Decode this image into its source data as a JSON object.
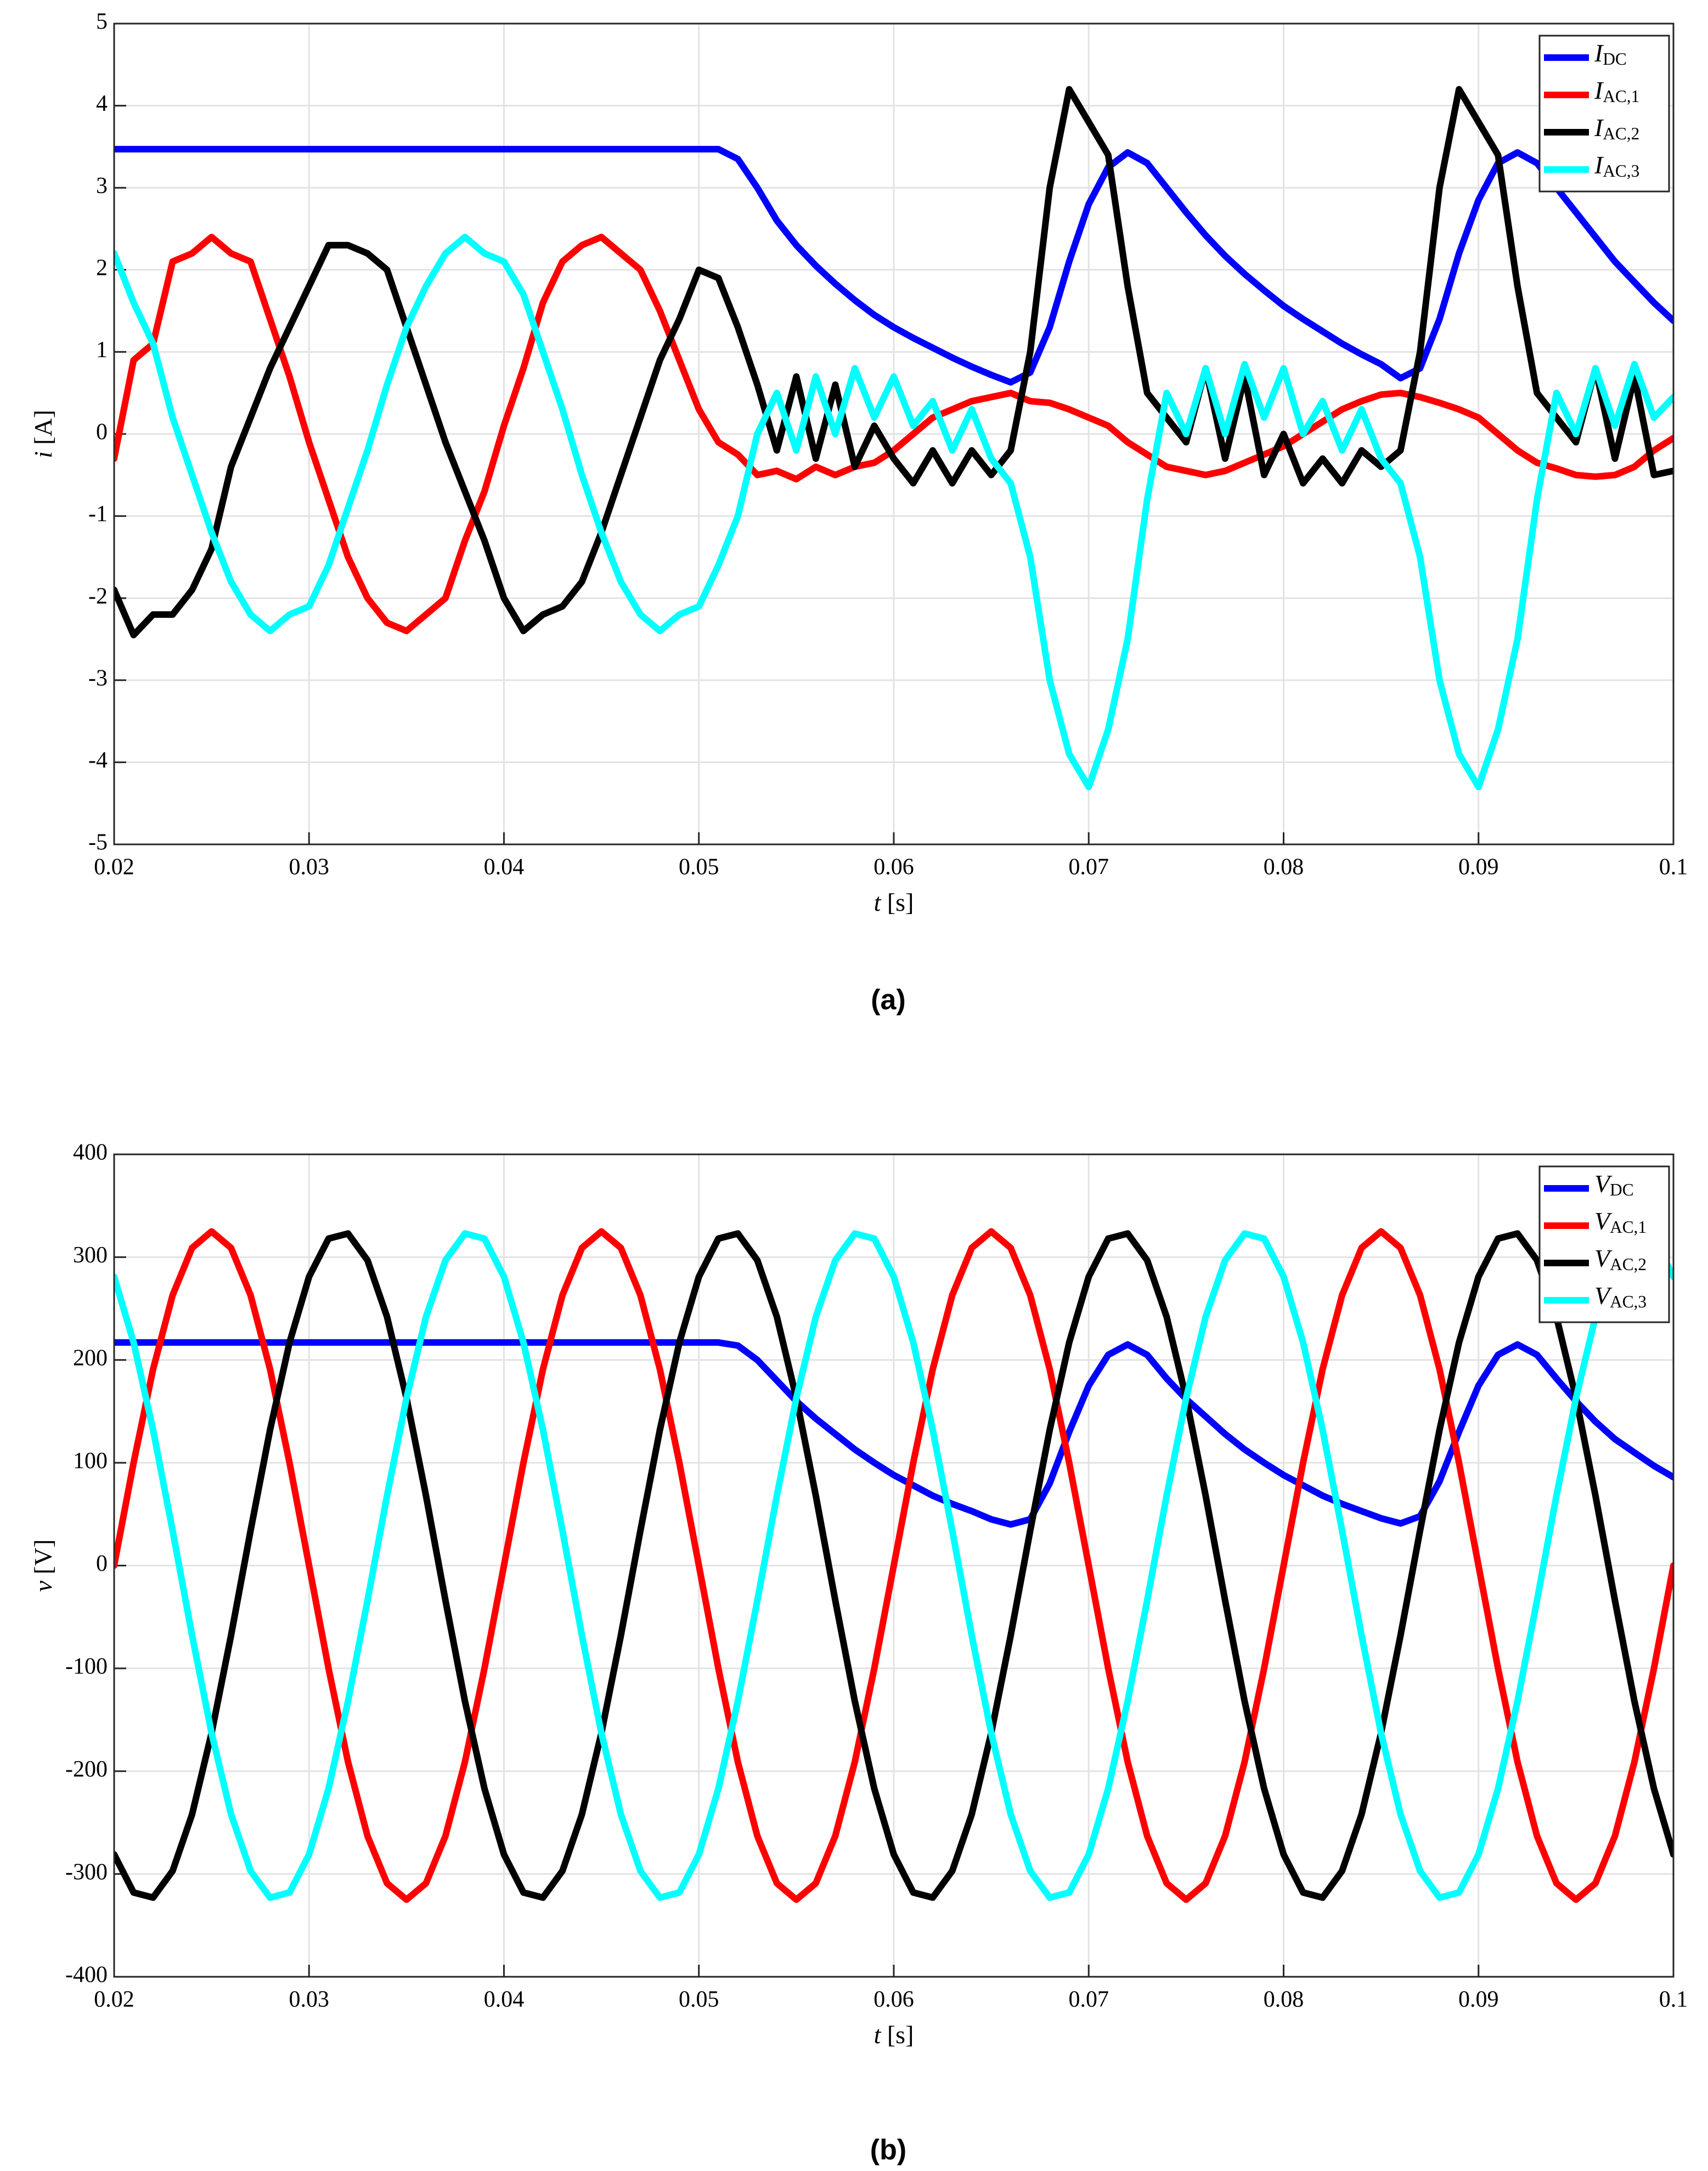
{
  "chart_data": [
    {
      "type": "line",
      "label": "(a)",
      "xlabel": "t  [s]",
      "ylabel": "i  [A]",
      "grid": true,
      "legend": "upper right",
      "xlim": [
        0.02,
        0.1
      ],
      "xticks": [
        0.02,
        0.03,
        0.04,
        0.05,
        0.06,
        0.07,
        0.08,
        0.09,
        0.1
      ],
      "ylim": [
        -5,
        5
      ],
      "yticks": [
        -5,
        -4,
        -3,
        -2,
        -1,
        0,
        1,
        2,
        3,
        4,
        5
      ],
      "x": [
        0.02,
        0.021,
        0.022,
        0.023,
        0.024,
        0.025,
        0.026,
        0.027,
        0.028,
        0.029,
        0.03,
        0.031,
        0.032,
        0.033,
        0.034,
        0.035,
        0.036,
        0.037,
        0.038,
        0.039,
        0.04,
        0.041,
        0.042,
        0.043,
        0.044,
        0.045,
        0.046,
        0.047,
        0.048,
        0.049,
        0.05,
        0.051,
        0.052,
        0.053,
        0.054,
        0.055,
        0.056,
        0.057,
        0.058,
        0.059,
        0.06,
        0.061,
        0.062,
        0.063,
        0.064,
        0.065,
        0.066,
        0.067,
        0.068,
        0.069,
        0.07,
        0.071,
        0.072,
        0.073,
        0.074,
        0.075,
        0.076,
        0.077,
        0.078,
        0.079,
        0.08,
        0.081,
        0.082,
        0.083,
        0.084,
        0.085,
        0.086,
        0.087,
        0.088,
        0.089,
        0.09,
        0.091,
        0.092,
        0.093,
        0.094,
        0.095,
        0.096,
        0.097,
        0.098,
        0.099,
        0.1
      ],
      "series": [
        {
          "name": "IDC",
          "color": "#0000ff",
          "values": [
            3.47,
            3.47,
            3.47,
            3.47,
            3.47,
            3.47,
            3.47,
            3.47,
            3.47,
            3.47,
            3.47,
            3.47,
            3.47,
            3.47,
            3.47,
            3.47,
            3.47,
            3.47,
            3.47,
            3.47,
            3.47,
            3.47,
            3.47,
            3.47,
            3.47,
            3.47,
            3.47,
            3.47,
            3.47,
            3.47,
            3.47,
            3.47,
            3.35,
            3.0,
            2.6,
            2.3,
            2.05,
            1.83,
            1.63,
            1.45,
            1.3,
            1.17,
            1.05,
            0.93,
            0.82,
            0.72,
            0.63,
            0.75,
            1.3,
            2.1,
            2.8,
            3.25,
            3.43,
            3.3,
            3.0,
            2.7,
            2.42,
            2.17,
            1.95,
            1.75,
            1.56,
            1.4,
            1.25,
            1.1,
            0.97,
            0.85,
            0.68,
            0.8,
            1.4,
            2.2,
            2.85,
            3.3,
            3.43,
            3.3,
            3.0,
            2.7,
            2.4,
            2.1,
            1.85,
            1.6,
            1.38
          ]
        },
        {
          "name": "IAC,1",
          "color": "#ff0000",
          "values": [
            -0.3,
            0.9,
            1.1,
            2.1,
            2.2,
            2.4,
            2.2,
            2.1,
            1.4,
            0.7,
            -0.1,
            -0.8,
            -1.5,
            -2.0,
            -2.3,
            -2.4,
            -2.2,
            -2.0,
            -1.3,
            -0.7,
            0.1,
            0.8,
            1.6,
            2.1,
            2.3,
            2.4,
            2.2,
            2.0,
            1.5,
            0.9,
            0.3,
            -0.1,
            -0.25,
            -0.5,
            -0.45,
            -0.55,
            -0.4,
            -0.5,
            -0.4,
            -0.35,
            -0.2,
            0.0,
            0.2,
            0.3,
            0.4,
            0.45,
            0.5,
            0.4,
            0.38,
            0.3,
            0.2,
            0.1,
            -0.1,
            -0.25,
            -0.4,
            -0.45,
            -0.5,
            -0.45,
            -0.35,
            -0.25,
            -0.15,
            0.0,
            0.15,
            0.3,
            0.4,
            0.48,
            0.5,
            0.45,
            0.38,
            0.3,
            0.2,
            0.0,
            -0.2,
            -0.35,
            -0.42,
            -0.5,
            -0.52,
            -0.5,
            -0.4,
            -0.2,
            -0.05
          ]
        },
        {
          "name": "IAC,2",
          "color": "#000000",
          "values": [
            -1.9,
            -2.45,
            -2.2,
            -2.2,
            -1.9,
            -1.4,
            -0.4,
            0.2,
            0.8,
            1.3,
            1.8,
            2.3,
            2.3,
            2.2,
            2.0,
            1.3,
            0.6,
            -0.1,
            -0.7,
            -1.3,
            -2.0,
            -2.4,
            -2.2,
            -2.1,
            -1.8,
            -1.2,
            -0.5,
            0.2,
            0.9,
            1.4,
            2.0,
            1.9,
            1.3,
            0.6,
            -0.2,
            0.7,
            -0.3,
            0.6,
            -0.4,
            0.1,
            -0.3,
            -0.6,
            -0.2,
            -0.6,
            -0.2,
            -0.5,
            -0.2,
            1.0,
            3.0,
            4.2,
            3.8,
            3.4,
            1.8,
            0.5,
            0.2,
            -0.1,
            0.8,
            -0.3,
            0.7,
            -0.5,
            0.0,
            -0.6,
            -0.3,
            -0.6,
            -0.2,
            -0.4,
            -0.2,
            1.0,
            3.0,
            4.2,
            3.8,
            3.4,
            1.8,
            0.5,
            0.2,
            -0.1,
            0.8,
            -0.3,
            0.7,
            -0.5,
            -0.45
          ]
        },
        {
          "name": "IAC,3",
          "color": "#00ffff",
          "values": [
            2.2,
            1.6,
            1.1,
            0.2,
            -0.5,
            -1.2,
            -1.8,
            -2.2,
            -2.4,
            -2.2,
            -2.1,
            -1.6,
            -0.9,
            -0.2,
            0.6,
            1.3,
            1.8,
            2.2,
            2.4,
            2.2,
            2.1,
            1.7,
            1.0,
            0.3,
            -0.5,
            -1.2,
            -1.8,
            -2.2,
            -2.4,
            -2.2,
            -2.1,
            -1.6,
            -1.0,
            0.0,
            0.5,
            -0.2,
            0.7,
            0.0,
            0.8,
            0.2,
            0.7,
            0.1,
            0.4,
            -0.2,
            0.3,
            -0.3,
            -0.6,
            -1.5,
            -3.0,
            -3.9,
            -4.3,
            -3.6,
            -2.5,
            -0.8,
            0.5,
            0.0,
            0.8,
            0.0,
            0.85,
            0.2,
            0.8,
            0.0,
            0.4,
            -0.2,
            0.3,
            -0.3,
            -0.6,
            -1.5,
            -3.0,
            -3.9,
            -4.3,
            -3.6,
            -2.5,
            -0.8,
            0.5,
            0.0,
            0.8,
            0.1,
            0.85,
            0.2,
            0.45
          ]
        }
      ]
    },
    {
      "type": "line",
      "label": "(b)",
      "xlabel": "t  [s]",
      "ylabel": "v  [V]",
      "grid": true,
      "legend": "upper right",
      "xlim": [
        0.02,
        0.1
      ],
      "xticks": [
        0.02,
        0.03,
        0.04,
        0.05,
        0.06,
        0.07,
        0.08,
        0.09,
        0.1
      ],
      "ylim": [
        -400,
        400
      ],
      "yticks": [
        -400,
        -300,
        -200,
        -100,
        0,
        100,
        200,
        300,
        400
      ],
      "x": [
        0.02,
        0.021,
        0.022,
        0.023,
        0.024,
        0.025,
        0.026,
        0.027,
        0.028,
        0.029,
        0.03,
        0.031,
        0.032,
        0.033,
        0.034,
        0.035,
        0.036,
        0.037,
        0.038,
        0.039,
        0.04,
        0.041,
        0.042,
        0.043,
        0.044,
        0.045,
        0.046,
        0.047,
        0.048,
        0.049,
        0.05,
        0.051,
        0.052,
        0.053,
        0.054,
        0.055,
        0.056,
        0.057,
        0.058,
        0.059,
        0.06,
        0.061,
        0.062,
        0.063,
        0.064,
        0.065,
        0.066,
        0.067,
        0.068,
        0.069,
        0.07,
        0.071,
        0.072,
        0.073,
        0.074,
        0.075,
        0.076,
        0.077,
        0.078,
        0.079,
        0.08,
        0.081,
        0.082,
        0.083,
        0.084,
        0.085,
        0.086,
        0.087,
        0.088,
        0.089,
        0.09,
        0.091,
        0.092,
        0.093,
        0.094,
        0.095,
        0.096,
        0.097,
        0.098,
        0.099,
        0.1
      ],
      "series": [
        {
          "name": "VDC",
          "color": "#0000ff",
          "values": [
            217,
            217,
            217,
            217,
            217,
            217,
            217,
            217,
            217,
            217,
            217,
            217,
            217,
            217,
            217,
            217,
            217,
            217,
            217,
            217,
            217,
            217,
            217,
            217,
            217,
            217,
            217,
            217,
            217,
            217,
            217,
            217,
            214,
            200,
            180,
            160,
            143,
            128,
            113,
            100,
            88,
            78,
            68,
            60,
            53,
            45,
            40,
            45,
            80,
            130,
            175,
            205,
            215,
            205,
            182,
            162,
            145,
            128,
            113,
            100,
            88,
            78,
            68,
            60,
            53,
            46,
            41,
            48,
            82,
            130,
            175,
            205,
            215,
            205,
            182,
            160,
            140,
            123,
            110,
            97,
            86
          ]
        },
        {
          "name": "VAC,1",
          "color": "#ff0000",
          "values": [
            0,
            100,
            191,
            263,
            309,
            325,
            309,
            263,
            191,
            100,
            0,
            -100,
            -191,
            -263,
            -309,
            -325,
            -309,
            -263,
            -191,
            -100,
            0,
            100,
            191,
            263,
            309,
            325,
            309,
            263,
            191,
            100,
            0,
            -100,
            -191,
            -263,
            -309,
            -325,
            -309,
            -263,
            -191,
            -100,
            0,
            100,
            191,
            263,
            309,
            325,
            309,
            263,
            191,
            100,
            0,
            -100,
            -191,
            -263,
            -309,
            -325,
            -309,
            -263,
            -191,
            -100,
            0,
            100,
            191,
            263,
            309,
            325,
            309,
            263,
            191,
            100,
            0,
            -100,
            -191,
            -263,
            -309,
            -325,
            -309,
            -263,
            -191,
            -100,
            0
          ]
        },
        {
          "name": "VAC,2",
          "color": "#000000",
          "values": [
            -281,
            -318,
            -323,
            -297,
            -242,
            -163,
            -68,
            34,
            132,
            217,
            281,
            318,
            323,
            297,
            242,
            163,
            68,
            -34,
            -132,
            -217,
            -281,
            -318,
            -323,
            -297,
            -242,
            -163,
            -68,
            34,
            132,
            217,
            281,
            318,
            323,
            297,
            242,
            163,
            68,
            -34,
            -132,
            -217,
            -281,
            -318,
            -323,
            -297,
            -242,
            -163,
            -68,
            34,
            132,
            217,
            281,
            318,
            323,
            297,
            242,
            163,
            68,
            -34,
            -132,
            -217,
            -281,
            -318,
            -323,
            -297,
            -242,
            -163,
            -68,
            34,
            132,
            217,
            281,
            318,
            323,
            297,
            242,
            163,
            68,
            -34,
            -132,
            -217,
            -281
          ]
        },
        {
          "name": "VAC,3",
          "color": "#00ffff",
          "values": [
            281,
            217,
            132,
            34,
            -68,
            -163,
            -242,
            -297,
            -323,
            -318,
            -281,
            -217,
            -132,
            -34,
            68,
            163,
            242,
            297,
            323,
            318,
            281,
            217,
            132,
            34,
            -68,
            -163,
            -242,
            -297,
            -323,
            -318,
            -281,
            -217,
            -132,
            -34,
            68,
            163,
            242,
            297,
            323,
            318,
            281,
            217,
            132,
            34,
            -68,
            -163,
            -242,
            -297,
            -323,
            -318,
            -281,
            -217,
            -132,
            -34,
            68,
            163,
            242,
            297,
            323,
            318,
            281,
            217,
            132,
            34,
            -68,
            -163,
            -242,
            -297,
            -323,
            -318,
            -281,
            -217,
            -132,
            -34,
            68,
            163,
            242,
            297,
            323,
            318,
            281
          ]
        }
      ]
    }
  ]
}
